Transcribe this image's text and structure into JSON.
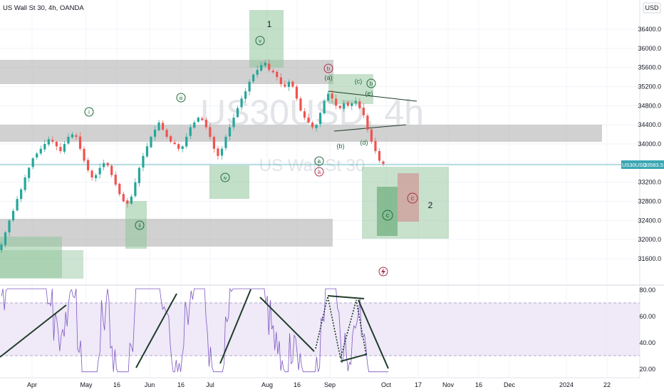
{
  "header": {
    "symbol_title": "US Wall St 30, 4h, OANDA",
    "currency": "USD"
  },
  "watermark": {
    "line1": "US30USD, 4h",
    "line2": "US Wall St 30"
  },
  "price_tag": {
    "symbol": "US30USD",
    "value": "33583.5",
    "price": 33583.5
  },
  "colors": {
    "up_candle": "#26a69a",
    "down_candle": "#ef5350",
    "zone_gray": "#b2b2b2",
    "zone_green": "#8fc49a",
    "zone_red": "#d08a8a",
    "rsi_line": "#7e57c2",
    "rsi_band": "#e8e0f5",
    "trendline": "#1f3d2a",
    "label_green": "#1e6b3a",
    "label_red": "#a8324a",
    "price_line": "#3ba7b3"
  },
  "chart_data": [
    {
      "type": "candlestick",
      "title": "US Wall St 30, 4h, OANDA",
      "ylabel": "USD",
      "ylim": [
        31300,
        36800
      ],
      "y_ticks": [
        "36400.0",
        "36000.0",
        "35600.0",
        "35200.0",
        "34800.0",
        "34400.0",
        "34000.0",
        "33600.0",
        "33200.0",
        "32800.0",
        "32400.0",
        "32000.0",
        "31600.0"
      ],
      "x_ticks": [
        "Apr",
        "May",
        "16",
        "Jun",
        "16",
        "Jul",
        "Aug",
        "16",
        "Sep",
        "Oct",
        "17",
        "Nov",
        "16",
        "Dec",
        "2024",
        "22"
      ],
      "last_price": 33583.5,
      "close_series": [
        31900,
        32150,
        32400,
        32600,
        32850,
        33050,
        33300,
        33500,
        33700,
        33800,
        33900,
        34000,
        34100,
        34050,
        33950,
        33850,
        34000,
        34150,
        34200,
        34150,
        33900,
        33650,
        33450,
        33300,
        33350,
        33500,
        33600,
        33550,
        33350,
        33150,
        32950,
        32800,
        32750,
        32900,
        33200,
        33500,
        33750,
        33950,
        34150,
        34300,
        34450,
        34300,
        34150,
        34050,
        34000,
        33900,
        33950,
        34150,
        34350,
        34450,
        34550,
        34500,
        34350,
        34150,
        33900,
        33750,
        33900,
        34150,
        34350,
        34550,
        34750,
        34950,
        35100,
        35300,
        35450,
        35550,
        35650,
        35700,
        35550,
        35500,
        35400,
        35250,
        35200,
        35300,
        35200,
        34950,
        34700,
        34550,
        34450,
        34350,
        34400,
        34650,
        34900,
        35050,
        34950,
        34800,
        34750,
        34850,
        34800,
        34850,
        34900,
        34750,
        34600,
        34300,
        34050,
        33850,
        33650,
        33583.5
      ],
      "series": [
        {
          "name": "RSI",
          "ylim": [
            15,
            85
          ],
          "ticks": [
            "80.00",
            "60.00",
            "40.00",
            "20.00"
          ],
          "band": [
            30,
            70
          ]
        }
      ],
      "zones": [
        {
          "kind": "gray",
          "from": 35280,
          "to": 35750
        },
        {
          "kind": "gray",
          "from": 34050,
          "to": 34400
        },
        {
          "kind": "gray",
          "from": 32150,
          "to": 32450
        },
        {
          "kind": "green",
          "from": 33200,
          "to": 33550
        },
        {
          "kind": "green",
          "from": 31350,
          "to": 31850
        }
      ]
    }
  ],
  "wave_labels": {
    "one": "1",
    "two": "2",
    "i": "i",
    "ii": "ii",
    "iii": "iii",
    "iv": "iv",
    "v": "v",
    "a_green": "a",
    "a_red": "a",
    "b_red": "b",
    "paren_a": "(a)",
    "paren_b": "(b)",
    "paren_c": "(c)",
    "b_green": "b",
    "paren_e": "(e)",
    "paren_d": "(d)",
    "c_green": "c",
    "c_red": "c"
  }
}
